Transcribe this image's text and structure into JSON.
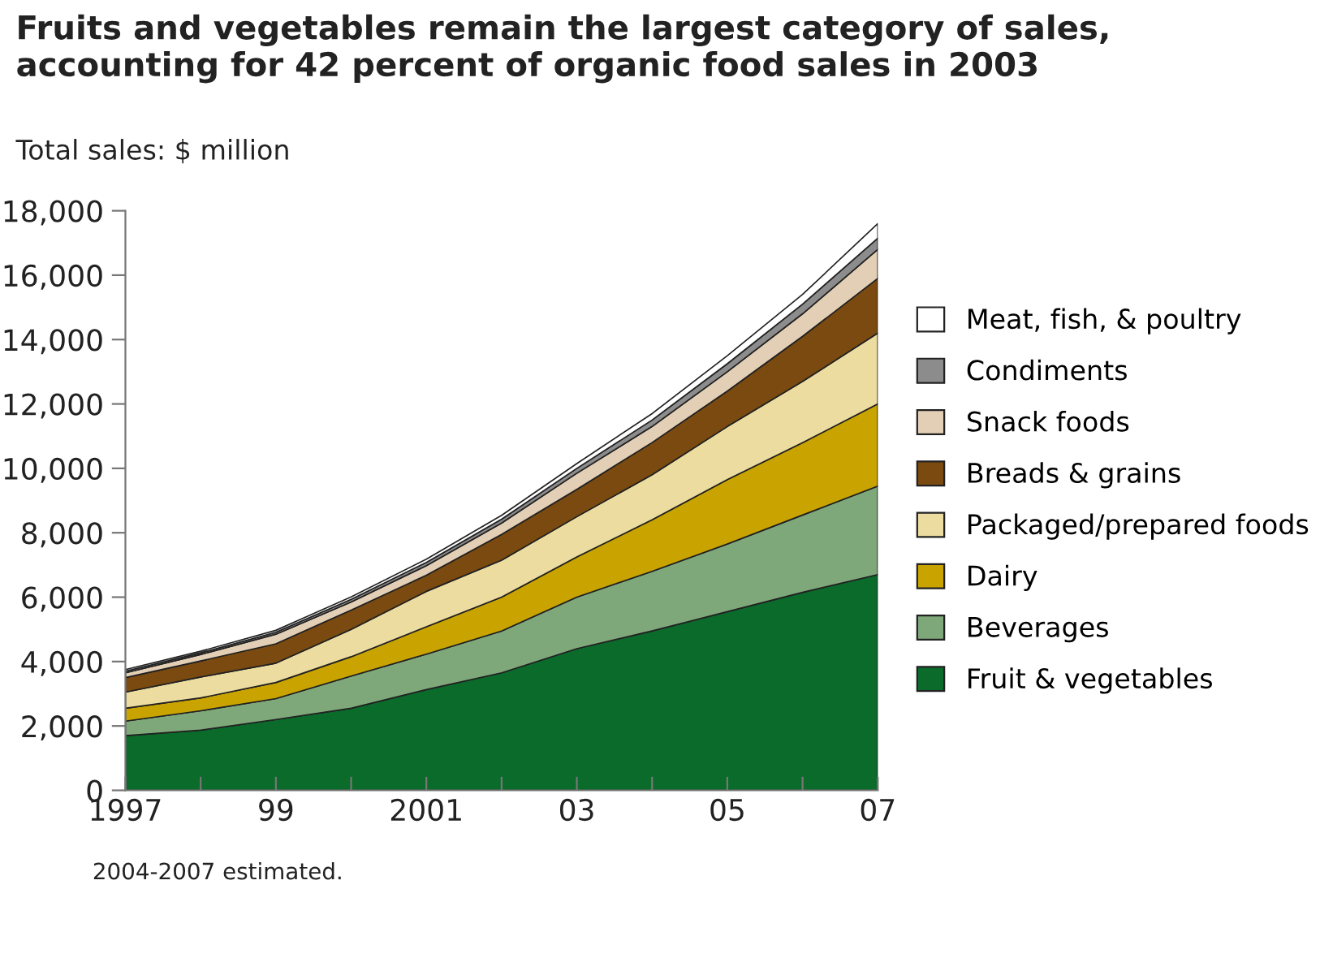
{
  "chart_data": {
    "type": "area",
    "stacked": true,
    "title": "Fruits and vegetables remain the largest category of sales,\naccounting for 42 percent of organic food sales in 2003",
    "subtitle": "Total sales: $ million",
    "annotations": [
      "2004-2007 estimated."
    ],
    "x": [
      1997,
      1998,
      1999,
      2000,
      2001,
      2002,
      2003,
      2004,
      2005,
      2006,
      2007
    ],
    "series": [
      {
        "name": "Fruit & vegetables",
        "color": "#0a6b2a",
        "values": [
          1700,
          1870,
          2200,
          2550,
          3130,
          3650,
          4400,
          4950,
          5550,
          6150,
          6700
        ]
      },
      {
        "name": "Beverages",
        "color": "#7fa87a",
        "values": [
          450,
          600,
          650,
          1000,
          1100,
          1300,
          1600,
          1850,
          2100,
          2400,
          2750
        ]
      },
      {
        "name": "Dairy",
        "color": "#c9a400",
        "values": [
          400,
          400,
          500,
          600,
          850,
          1050,
          1250,
          1600,
          2000,
          2250,
          2550
        ]
      },
      {
        "name": "Packaged/prepared foods",
        "color": "#ecdca0",
        "values": [
          500,
          650,
          600,
          850,
          1100,
          1150,
          1250,
          1400,
          1650,
          1900,
          2200
        ]
      },
      {
        "name": "Breads & grains",
        "color": "#7a4a10",
        "values": [
          450,
          500,
          600,
          600,
          500,
          800,
          850,
          1000,
          1100,
          1400,
          1700
        ]
      },
      {
        "name": "Snack foods",
        "color": "#e3cfb5",
        "values": [
          150,
          200,
          300,
          250,
          300,
          350,
          500,
          500,
          600,
          700,
          900
        ]
      },
      {
        "name": "Condiments",
        "color": "#8c8c8c",
        "values": [
          50,
          50,
          60,
          80,
          100,
          120,
          150,
          200,
          250,
          300,
          350
        ]
      },
      {
        "name": "Meat, fish, & poultry",
        "color": "#ffffff",
        "values": [
          50,
          50,
          60,
          80,
          100,
          120,
          150,
          200,
          250,
          300,
          450
        ]
      }
    ],
    "xlim": [
      1997,
      2007
    ],
    "xticks": [
      {
        "value": 1997,
        "label": "1997"
      },
      {
        "value": 1998,
        "label": null
      },
      {
        "value": 1999,
        "label": "99"
      },
      {
        "value": 2000,
        "label": null
      },
      {
        "value": 2001,
        "label": "2001"
      },
      {
        "value": 2002,
        "label": null
      },
      {
        "value": 2003,
        "label": "03"
      },
      {
        "value": 2004,
        "label": null
      },
      {
        "value": 2005,
        "label": "05"
      },
      {
        "value": 2006,
        "label": null
      },
      {
        "value": 2007,
        "label": "07"
      }
    ],
    "ylim": [
      0,
      18000
    ],
    "yticks": [
      0,
      {
        "value": 2000,
        "label": "2,000"
      },
      {
        "value": 4000,
        "label": "4,000"
      },
      {
        "value": 6000,
        "label": "6,000"
      },
      {
        "value": 8000,
        "label": "8,000"
      },
      {
        "value": 10000,
        "label": "10,000"
      },
      {
        "value": 12000,
        "label": "12,000"
      },
      {
        "value": 14000,
        "label": "14,000"
      },
      {
        "value": 16000,
        "label": "16,000"
      },
      {
        "value": 18000,
        "label": "18,000"
      }
    ],
    "grid": false,
    "legend": "right"
  }
}
